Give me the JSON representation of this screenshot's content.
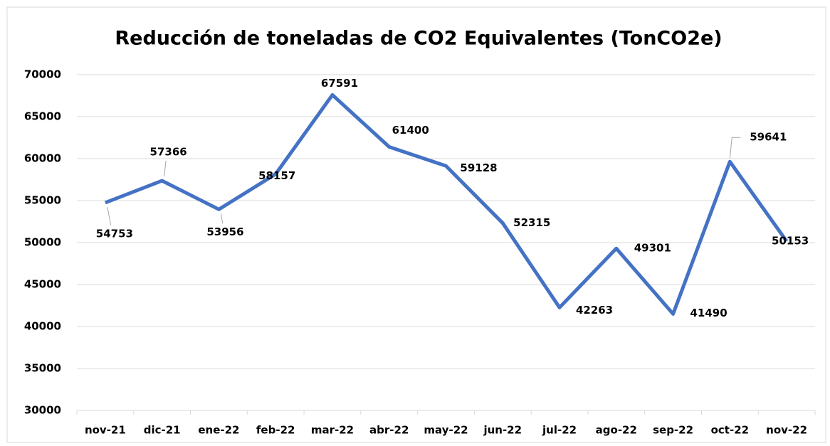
{
  "chart_data": {
    "type": "line",
    "title": "Reducción de toneladas de CO2 Equivalentes (TonCO2e)",
    "categories": [
      "nov-21",
      "dic-21",
      "ene-22",
      "feb-22",
      "mar-22",
      "abr-22",
      "may-22",
      "jun-22",
      "jul-22",
      "ago-22",
      "sep-22",
      "oct-22",
      "nov-22"
    ],
    "series": [
      {
        "name": "TonCO2e",
        "color": "#4472c4",
        "values": [
          54753,
          57366,
          53956,
          58157,
          67591,
          61400,
          59128,
          52315,
          42263,
          49301,
          41490,
          59641,
          50153
        ]
      }
    ],
    "ylim": [
      30000,
      70000
    ],
    "yticks": [
      30000,
      35000,
      40000,
      45000,
      50000,
      55000,
      60000,
      65000,
      70000
    ],
    "grid": true
  }
}
